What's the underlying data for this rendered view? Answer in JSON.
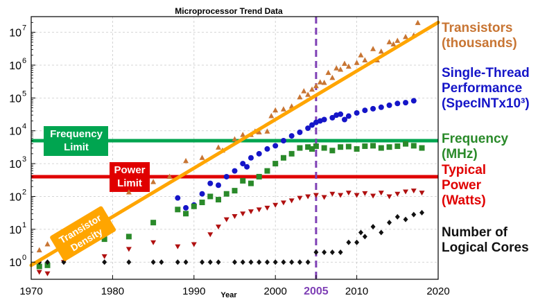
{
  "chart_data": {
    "type": "scatter",
    "title": "Microprocessor Trend Data",
    "xlabel": "Year",
    "ylabel": "",
    "y_scale": "log",
    "xlim": [
      1970,
      2020
    ],
    "ylim": [
      0.3,
      30000000
    ],
    "x_ticks": [
      {
        "value": 1970,
        "label": "1970"
      },
      {
        "value": 1980,
        "label": "1980"
      },
      {
        "value": 1990,
        "label": "1990"
      },
      {
        "value": 2000,
        "label": "2000"
      },
      {
        "value": 2005,
        "label": "2005"
      },
      {
        "value": 2010,
        "label": "2010"
      },
      {
        "value": 2020,
        "label": "2020"
      }
    ],
    "y_ticks": [
      {
        "value": 1,
        "base": "10",
        "exp": "0"
      },
      {
        "value": 10,
        "base": "10",
        "exp": "1"
      },
      {
        "value": 100,
        "base": "10",
        "exp": "2"
      },
      {
        "value": 1000,
        "base": "10",
        "exp": "3"
      },
      {
        "value": 10000,
        "base": "10",
        "exp": "4"
      },
      {
        "value": 100000,
        "base": "10",
        "exp": "5"
      },
      {
        "value": 1000000,
        "base": "10",
        "exp": "6"
      },
      {
        "value": 10000000,
        "base": "10",
        "exp": "7"
      }
    ],
    "grid": true,
    "series": [
      {
        "name": "Transistors (thousands)",
        "marker": "triangle-up",
        "color": "#c87533",
        "points": [
          [
            1971,
            2.3
          ],
          [
            1972,
            3.5
          ],
          [
            1974,
            6
          ],
          [
            1976,
            9
          ],
          [
            1978,
            29
          ],
          [
            1979,
            30
          ],
          [
            1982,
            134
          ],
          [
            1985,
            275
          ],
          [
            1987,
            400
          ],
          [
            1989,
            1200
          ],
          [
            1991,
            1500
          ],
          [
            1993,
            3100
          ],
          [
            1993.5,
            2500
          ],
          [
            1995,
            5500
          ],
          [
            1996,
            7500
          ],
          [
            1997,
            7500
          ],
          [
            1997.5,
            9500
          ],
          [
            1998,
            9000
          ],
          [
            1999,
            9500
          ],
          [
            1999.5,
            28000
          ],
          [
            2000,
            42000
          ],
          [
            2001,
            45000
          ],
          [
            2002,
            55000
          ],
          [
            2003,
            105000
          ],
          [
            2003.5,
            160000
          ],
          [
            2004,
            125000
          ],
          [
            2004.5,
            180000
          ],
          [
            2005,
            230000
          ],
          [
            2005.5,
            300000
          ],
          [
            2006,
            290000
          ],
          [
            2006.5,
            580000
          ],
          [
            2007,
            410000
          ],
          [
            2007.5,
            800000
          ],
          [
            2008,
            730000
          ],
          [
            2008.5,
            1100000
          ],
          [
            2009,
            900000
          ],
          [
            2010,
            1170000
          ],
          [
            2010.5,
            2000000
          ],
          [
            2011,
            1400000
          ],
          [
            2012,
            3100000
          ],
          [
            2012.5,
            1400000
          ],
          [
            2013,
            2600000
          ],
          [
            2014,
            5000000
          ],
          [
            2014.5,
            4300000
          ],
          [
            2015,
            5500000
          ],
          [
            2016,
            7200000
          ],
          [
            2017,
            8000000
          ],
          [
            2017.5,
            19200000
          ]
        ]
      },
      {
        "name": "Single-Thread Performance (SpecINTx10³)",
        "marker": "circle",
        "color": "#1515c8",
        "points": [
          [
            1988,
            90
          ],
          [
            1989,
            45
          ],
          [
            1990,
            55
          ],
          [
            1991,
            120
          ],
          [
            1992,
            250
          ],
          [
            1993,
            220
          ],
          [
            1994,
            400
          ],
          [
            1995,
            600
          ],
          [
            1996,
            1000
          ],
          [
            1996.5,
            800
          ],
          [
            1997,
            1500
          ],
          [
            1998,
            2000
          ],
          [
            1999,
            2800
          ],
          [
            2000,
            3500
          ],
          [
            2001,
            5000
          ],
          [
            2002,
            7000
          ],
          [
            2003,
            9000
          ],
          [
            2004,
            12000
          ],
          [
            2004.5,
            15000
          ],
          [
            2005,
            18000
          ],
          [
            2005.5,
            20000
          ],
          [
            2006,
            22000
          ],
          [
            2007,
            25000
          ],
          [
            2007.5,
            30000
          ],
          [
            2008,
            32000
          ],
          [
            2008.5,
            22000
          ],
          [
            2009,
            28000
          ],
          [
            2010,
            35000
          ],
          [
            2011,
            42000
          ],
          [
            2012,
            47000
          ],
          [
            2013,
            52000
          ],
          [
            2014,
            60000
          ],
          [
            2015,
            68000
          ],
          [
            2016,
            72000
          ],
          [
            2017,
            82000
          ]
        ]
      },
      {
        "name": "Frequency (MHz)",
        "marker": "square",
        "color": "#2a8a2a",
        "points": [
          [
            1971,
            0.74
          ],
          [
            1972,
            0.8
          ],
          [
            1974,
            2
          ],
          [
            1976,
            3
          ],
          [
            1979,
            5
          ],
          [
            1982,
            6
          ],
          [
            1985,
            16
          ],
          [
            1988,
            40
          ],
          [
            1989,
            30
          ],
          [
            1990,
            50
          ],
          [
            1991,
            66
          ],
          [
            1992,
            100
          ],
          [
            1993,
            80
          ],
          [
            1994,
            120
          ],
          [
            1995,
            150
          ],
          [
            1996,
            300
          ],
          [
            1997,
            250
          ],
          [
            1998,
            400
          ],
          [
            1999,
            600
          ],
          [
            2000,
            1000
          ],
          [
            2001,
            1500
          ],
          [
            2002,
            2000
          ],
          [
            2003,
            3000
          ],
          [
            2004,
            3200
          ],
          [
            2004.5,
            2800
          ],
          [
            2005,
            3400
          ],
          [
            2006,
            3000
          ],
          [
            2007,
            2500
          ],
          [
            2008,
            3200
          ],
          [
            2009,
            3300
          ],
          [
            2010,
            2800
          ],
          [
            2011,
            3400
          ],
          [
            2012,
            3500
          ],
          [
            2013,
            3000
          ],
          [
            2014,
            3200
          ],
          [
            2015,
            3400
          ],
          [
            2016,
            4000
          ],
          [
            2017,
            3500
          ],
          [
            2018,
            3000
          ]
        ]
      },
      {
        "name": "Typical Power (Watts)",
        "marker": "triangle-down",
        "color": "#b01010",
        "points": [
          [
            1971,
            0.5
          ],
          [
            1972,
            0.45
          ],
          [
            1974,
            1
          ],
          [
            1979,
            1.5
          ],
          [
            1982,
            2.5
          ],
          [
            1985,
            4
          ],
          [
            1988,
            3
          ],
          [
            1990,
            3.5
          ],
          [
            1992,
            7
          ],
          [
            1993,
            12
          ],
          [
            1994,
            20
          ],
          [
            1995,
            25
          ],
          [
            1996,
            30
          ],
          [
            1997,
            35
          ],
          [
            1998,
            40
          ],
          [
            1999,
            45
          ],
          [
            2000,
            55
          ],
          [
            2001,
            65
          ],
          [
            2002,
            75
          ],
          [
            2003,
            90
          ],
          [
            2004,
            100
          ],
          [
            2005,
            110
          ],
          [
            2006,
            95
          ],
          [
            2007,
            120
          ],
          [
            2008,
            110
          ],
          [
            2009,
            130
          ],
          [
            2010,
            110
          ],
          [
            2011,
            125
          ],
          [
            2012,
            105
          ],
          [
            2013,
            130
          ],
          [
            2014,
            100
          ],
          [
            2015,
            120
          ],
          [
            2016,
            140
          ],
          [
            2017,
            150
          ],
          [
            2018,
            130
          ]
        ]
      },
      {
        "name": "Number of Logical Cores",
        "marker": "diamond",
        "color": "#111111",
        "points": [
          [
            1971,
            1
          ],
          [
            1972,
            1
          ],
          [
            1974,
            1
          ],
          [
            1979,
            1
          ],
          [
            1982,
            1
          ],
          [
            1985,
            1
          ],
          [
            1986,
            1
          ],
          [
            1988,
            1
          ],
          [
            1989,
            1
          ],
          [
            1991,
            1
          ],
          [
            1992,
            1
          ],
          [
            1993,
            1
          ],
          [
            1995,
            1
          ],
          [
            1996,
            1
          ],
          [
            1997,
            1
          ],
          [
            1998,
            1
          ],
          [
            1999,
            1
          ],
          [
            2000,
            1
          ],
          [
            2001,
            1
          ],
          [
            2002,
            1
          ],
          [
            2003,
            1
          ],
          [
            2004,
            1
          ],
          [
            2005,
            2
          ],
          [
            2006,
            2
          ],
          [
            2007,
            2
          ],
          [
            2008,
            2
          ],
          [
            2009,
            4
          ],
          [
            2010,
            4
          ],
          [
            2010.5,
            8
          ],
          [
            2011,
            6
          ],
          [
            2012,
            12
          ],
          [
            2013,
            8
          ],
          [
            2014,
            16
          ],
          [
            2015,
            24
          ],
          [
            2016,
            20
          ],
          [
            2017,
            28
          ],
          [
            2018,
            32
          ]
        ]
      }
    ],
    "reference_lines": [
      {
        "type": "horizontal",
        "y": 5000,
        "label": "Frequency Limit",
        "color": "#00a550"
      },
      {
        "type": "horizontal",
        "y": 400,
        "label": "Power Limit",
        "color": "#e00000"
      },
      {
        "type": "vertical",
        "x": 2005,
        "label": "2005",
        "color": "#7e3fb5"
      }
    ],
    "trend_line": {
      "label": "Transistor Density",
      "color": "#ffa500",
      "from": [
        1970,
        0.8
      ],
      "to": [
        2020,
        20000000
      ]
    },
    "legend_placement": "right",
    "legend": [
      {
        "lines": [
          "Transistors",
          "(thousands)"
        ],
        "color": "#c87533"
      },
      {
        "lines": [
          "Single-Thread",
          "Performance",
          "(SpecINTx10³)"
        ],
        "color": "#1515c8"
      },
      {
        "lines": [
          "Frequency",
          "(MHz)"
        ],
        "color": "#2a8a2a"
      },
      {
        "lines": [
          "Typical",
          "Power",
          "(Watts)"
        ],
        "color": "#e00000"
      },
      {
        "lines": [
          "Number of",
          "Logical Cores"
        ],
        "color": "#111111"
      }
    ]
  }
}
